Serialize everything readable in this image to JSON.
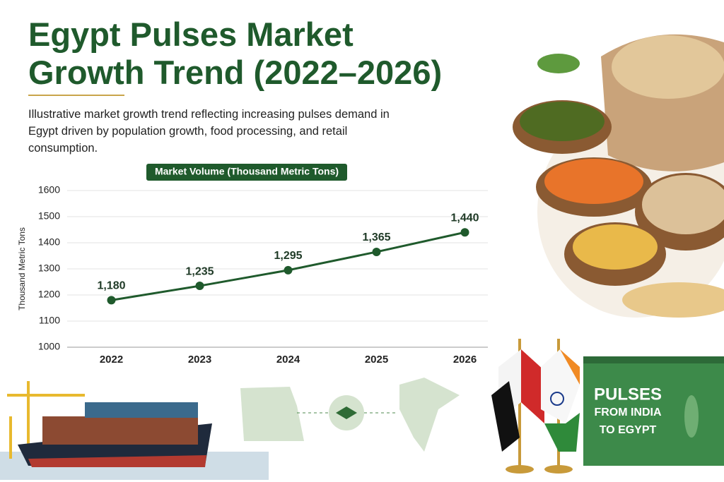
{
  "chart_data": {
    "type": "line",
    "title": "Egypt Pulses Market Growth Trend (2022–2026)",
    "subtitle": "Illustrative market growth trend reflecting increasing pulses demand in Egypt driven by population growth, food processing, and retail consumption.",
    "y_label": "Thousand Metric Tons",
    "categories": [
      "2022",
      "2023",
      "2024",
      "2025",
      "2026"
    ],
    "series": [
      {
        "name": "Market Volume (Thousand Metric Tons)",
        "color": "#1f5a2c",
        "values": [
          1180,
          1235,
          1295,
          1365,
          1440
        ],
        "value_labels": [
          "1,180",
          "1,235",
          "1,295",
          "1,365",
          "1,440"
        ]
      }
    ],
    "ylim": [
      1000,
      1600
    ],
    "yticks": [
      1000,
      1100,
      1200,
      1300,
      1400,
      1500,
      1600
    ],
    "grid": true
  },
  "illustration": {
    "container_lines": [
      "PULSES",
      "FROM INDIA",
      "TO EGYPT"
    ]
  }
}
